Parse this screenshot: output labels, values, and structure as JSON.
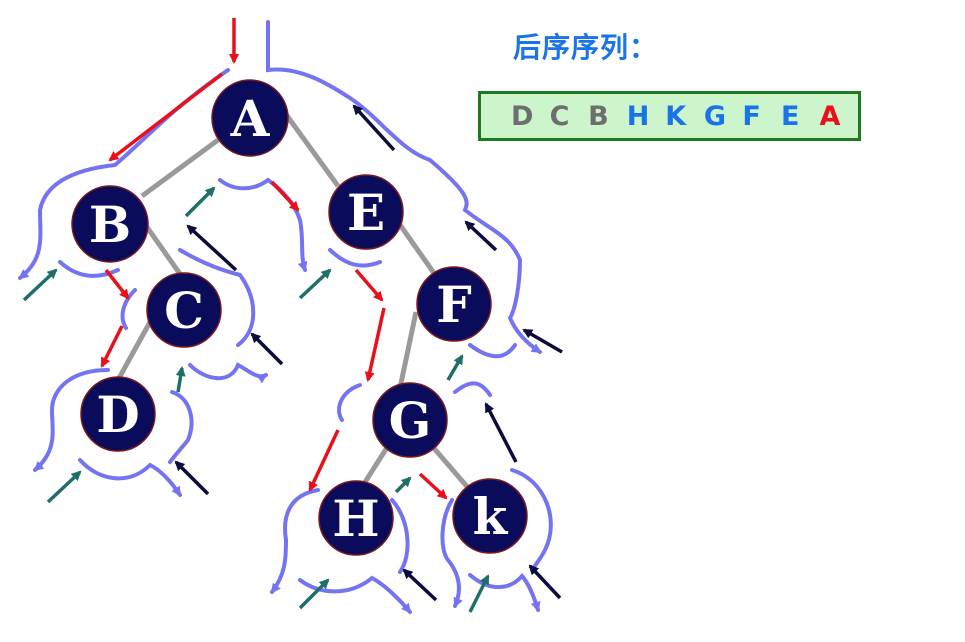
{
  "title": "后序序列：",
  "sequence": [
    {
      "letter": "D",
      "color": "#6e6e6e"
    },
    {
      "letter": "C",
      "color": "#6e6e6e"
    },
    {
      "letter": "B",
      "color": "#6e6e6e"
    },
    {
      "letter": "H",
      "color": "#1a73e8"
    },
    {
      "letter": "K",
      "color": "#1a73e8"
    },
    {
      "letter": "G",
      "color": "#1a73e8"
    },
    {
      "letter": "F",
      "color": "#1a73e8"
    },
    {
      "letter": "E",
      "color": "#1a73e8"
    },
    {
      "letter": "A",
      "color": "#e8101a"
    }
  ],
  "tree": {
    "nodes": {
      "A": "A",
      "B": "B",
      "C": "C",
      "D": "D",
      "E": "E",
      "F": "F",
      "G": "G",
      "H": "H",
      "K": "k"
    }
  },
  "colors": {
    "node_fill": "#0b0b5c",
    "edge": "#9a9a9a",
    "contour": "#7474f2",
    "arrow_red": "#e8101a",
    "arrow_teal": "#1f6e68",
    "arrow_dark": "#0b0b3c"
  }
}
